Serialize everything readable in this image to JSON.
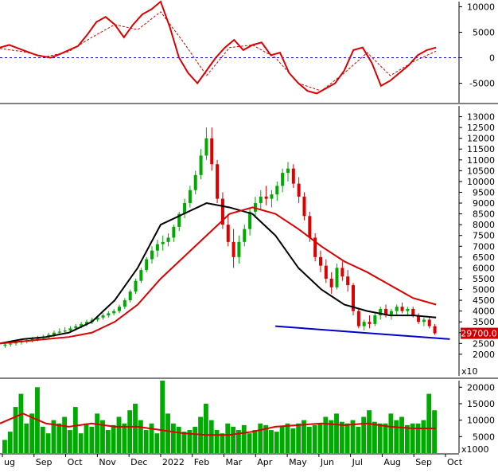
{
  "chart_data": [
    {
      "panel": "oscillator",
      "type": "line",
      "ylim": [
        -8500,
        11000
      ],
      "y_ticks": [
        "10000",
        "5000",
        "0",
        "-5000"
      ],
      "zero_line_color": "#0000cc",
      "series": [
        {
          "name": "",
          "color": "#dd0000",
          "style": "solid",
          "x": [
            0,
            0.02,
            0.05,
            0.08,
            0.11,
            0.13,
            0.15,
            0.17,
            0.19,
            0.21,
            0.23,
            0.25,
            0.27,
            0.29,
            0.31,
            0.33,
            0.35,
            0.37,
            0.39,
            0.41,
            0.43,
            0.45,
            0.47,
            0.49,
            0.51,
            0.53,
            0.55,
            0.57,
            0.59,
            0.61,
            0.63,
            0.65,
            0.67,
            0.69,
            0.71,
            0.73,
            0.75,
            0.77,
            0.79,
            0.81,
            0.83,
            0.85,
            0.87,
            0.89,
            0.91,
            0.93,
            0.95
          ],
          "y": [
            2000,
            2500,
            1500,
            500,
            0,
            700,
            1500,
            2300,
            4500,
            7000,
            8000,
            6500,
            4000,
            6500,
            8500,
            9500,
            11000,
            6000,
            0,
            -3000,
            -5000,
            -2500,
            0,
            2000,
            3500,
            1500,
            2500,
            3000,
            500,
            1000,
            -3000,
            -5000,
            -6500,
            -7000,
            -6000,
            -5000,
            -2500,
            1500,
            2000,
            -1000,
            -5500,
            -4500,
            -3000,
            -1500,
            500,
            1500,
            2000
          ]
        },
        {
          "name": "",
          "color": "#dd0000",
          "style": "dashed",
          "x": [
            0,
            0.05,
            0.1,
            0.15,
            0.2,
            0.25,
            0.3,
            0.35,
            0.4,
            0.45,
            0.5,
            0.55,
            0.6,
            0.65,
            0.7,
            0.75,
            0.8,
            0.85,
            0.9,
            0.95
          ],
          "y": [
            1800,
            1200,
            200,
            1200,
            4000,
            6500,
            5500,
            9000,
            3000,
            -3500,
            2000,
            2500,
            0,
            -5000,
            -6500,
            -3000,
            1000,
            -3500,
            -800,
            1300
          ]
        }
      ]
    },
    {
      "panel": "price",
      "type": "candlestick",
      "ylim": [
        1000,
        13500
      ],
      "y_ticks": [
        "13000",
        "12500",
        "12000",
        "11500",
        "11000",
        "10500",
        "10000",
        "9500",
        "9000",
        "8500",
        "8000",
        "7500",
        "7000",
        "6500",
        "6000",
        "5500",
        "5000",
        "4500",
        "4000",
        "3500",
        "3000",
        "2500",
        "2000"
      ],
      "last_price_label": "29700.0",
      "axis_multiplier": "x10",
      "candles": [
        [
          2400,
          2500,
          2300,
          2450
        ],
        [
          2450,
          2600,
          2350,
          2500
        ],
        [
          2500,
          2650,
          2400,
          2550
        ],
        [
          2550,
          2700,
          2450,
          2600
        ],
        [
          2600,
          2750,
          2500,
          2650
        ],
        [
          2650,
          2800,
          2550,
          2700
        ],
        [
          2700,
          2850,
          2600,
          2750
        ],
        [
          2750,
          2900,
          2650,
          2800
        ],
        [
          2800,
          3000,
          2700,
          2900
        ],
        [
          2900,
          3100,
          2800,
          3000
        ],
        [
          3000,
          3200,
          2900,
          3050
        ],
        [
          3050,
          3250,
          2950,
          3100
        ],
        [
          3100,
          3300,
          3000,
          3200
        ],
        [
          3200,
          3400,
          3100,
          3300
        ],
        [
          3300,
          3500,
          3200,
          3400
        ],
        [
          3400,
          3600,
          3300,
          3500
        ],
        [
          3500,
          3700,
          3400,
          3600
        ],
        [
          3600,
          3800,
          3500,
          3700
        ],
        [
          3700,
          3900,
          3600,
          3800
        ],
        [
          3800,
          4000,
          3700,
          3900
        ],
        [
          3900,
          4100,
          3800,
          4000
        ],
        [
          4000,
          4300,
          3900,
          4200
        ],
        [
          4200,
          4600,
          4100,
          4500
        ],
        [
          4500,
          5000,
          4400,
          4900
        ],
        [
          4900,
          5500,
          4800,
          5400
        ],
        [
          5400,
          6000,
          5300,
          5900
        ],
        [
          5900,
          6500,
          5800,
          6400
        ],
        [
          6400,
          7000,
          6200,
          6800
        ],
        [
          6800,
          7300,
          6500,
          7100
        ],
        [
          7100,
          7500,
          6800,
          7200
        ],
        [
          7200,
          7600,
          7000,
          7400
        ],
        [
          7400,
          8000,
          7200,
          7900
        ],
        [
          7900,
          8600,
          7700,
          8500
        ],
        [
          8500,
          9200,
          8300,
          9000
        ],
        [
          9000,
          9800,
          8800,
          9600
        ],
        [
          9600,
          10500,
          9400,
          10300
        ],
        [
          10300,
          11500,
          10100,
          11200
        ],
        [
          11200,
          12500,
          11000,
          12000
        ],
        [
          12000,
          12500,
          10500,
          10800
        ],
        [
          10800,
          11000,
          9000,
          9200
        ],
        [
          9200,
          9500,
          7800,
          8000
        ],
        [
          8000,
          8500,
          7000,
          7200
        ],
        [
          7200,
          7800,
          6000,
          6500
        ],
        [
          6500,
          7500,
          6200,
          7200
        ],
        [
          7200,
          8000,
          7000,
          7800
        ],
        [
          7800,
          8800,
          7500,
          8600
        ],
        [
          8600,
          9300,
          8300,
          9000
        ],
        [
          9000,
          9600,
          8700,
          9300
        ],
        [
          9300,
          9800,
          8900,
          9200
        ],
        [
          9200,
          9600,
          8800,
          9400
        ],
        [
          9400,
          10000,
          9100,
          9800
        ],
        [
          9800,
          10600,
          9500,
          10400
        ],
        [
          10400,
          10900,
          10000,
          10600
        ],
        [
          10600,
          10800,
          9700,
          9900
        ],
        [
          9900,
          10200,
          9000,
          9300
        ],
        [
          9300,
          9500,
          8200,
          8400
        ],
        [
          8400,
          8600,
          7200,
          7400
        ],
        [
          7400,
          7600,
          6300,
          6500
        ],
        [
          6500,
          6800,
          5800,
          6100
        ],
        [
          6100,
          6400,
          5300,
          5500
        ],
        [
          5500,
          5800,
          4800,
          5100
        ],
        [
          5100,
          6200,
          5000,
          6000
        ],
        [
          6000,
          6300,
          5400,
          5600
        ],
        [
          5600,
          5900,
          4900,
          5200
        ],
        [
          5200,
          5300,
          3800,
          4000
        ],
        [
          4000,
          4100,
          3200,
          3300
        ],
        [
          3300,
          3600,
          3100,
          3500
        ],
        [
          3500,
          3800,
          3200,
          3400
        ],
        [
          3400,
          3900,
          3300,
          3800
        ],
        [
          3800,
          4200,
          3600,
          4100
        ],
        [
          4100,
          4300,
          3700,
          3800
        ],
        [
          3800,
          4100,
          3600,
          4000
        ],
        [
          4000,
          4300,
          3800,
          4200
        ],
        [
          4200,
          4400,
          3900,
          4000
        ],
        [
          4000,
          4200,
          3800,
          4100
        ],
        [
          4100,
          4200,
          3700,
          3800
        ],
        [
          3800,
          3900,
          3400,
          3500
        ],
        [
          3500,
          3700,
          3300,
          3600
        ],
        [
          3600,
          3700,
          3200,
          3300
        ],
        [
          3300,
          3400,
          2900,
          2970
        ]
      ],
      "series": [
        {
          "name": "",
          "color": "#000000",
          "x": [
            0,
            0.05,
            0.1,
            0.15,
            0.2,
            0.25,
            0.3,
            0.35,
            0.4,
            0.45,
            0.5,
            0.55,
            0.6,
            0.65,
            0.7,
            0.75,
            0.8,
            0.85,
            0.9,
            0.95
          ],
          "y": [
            2500,
            2700,
            2800,
            3000,
            3500,
            4500,
            6000,
            8000,
            8500,
            9000,
            8800,
            8500,
            7500,
            6000,
            5000,
            4300,
            4000,
            3800,
            3800,
            3700
          ]
        },
        {
          "name": "",
          "color": "#dd0000",
          "x": [
            0,
            0.05,
            0.1,
            0.15,
            0.2,
            0.25,
            0.3,
            0.35,
            0.4,
            0.45,
            0.5,
            0.55,
            0.6,
            0.65,
            0.7,
            0.75,
            0.8,
            0.85,
            0.9,
            0.95
          ],
          "y": [
            2500,
            2600,
            2700,
            2800,
            3000,
            3500,
            4300,
            5500,
            6500,
            7500,
            8500,
            8800,
            8500,
            7800,
            7000,
            6300,
            5800,
            5200,
            4600,
            4300
          ]
        },
        {
          "name": "",
          "color": "#0000cc",
          "x": [
            0.6,
            0.98
          ],
          "y": [
            3300,
            2700
          ]
        }
      ]
    },
    {
      "panel": "volume",
      "type": "bar",
      "ylim": [
        0,
        22000
      ],
      "y_ticks": [
        "20000",
        "15000",
        "10000",
        "5000"
      ],
      "axis_multiplier": "x1000",
      "values": [
        4000,
        6500,
        14000,
        18000,
        9000,
        12000,
        20000,
        8000,
        6000,
        10000,
        9000,
        11000,
        7000,
        14000,
        6000,
        9000,
        8000,
        12000,
        10000,
        7000,
        8500,
        11000,
        9000,
        13000,
        15000,
        10000,
        7000,
        9000,
        6000,
        22000,
        12000,
        9000,
        8000,
        6500,
        7000,
        8000,
        11000,
        15000,
        10000,
        7000,
        6000,
        9000,
        8000,
        7000,
        8500,
        6000,
        7000,
        9000,
        8500,
        7000,
        6500,
        8000,
        9000,
        7500,
        9000,
        10000,
        8000,
        8500,
        9000,
        11000,
        10000,
        12000,
        9500,
        9000,
        10000,
        8000,
        11000,
        13000,
        9500,
        9000,
        9000,
        12000,
        10000,
        11000,
        8500,
        9000,
        9000,
        10000,
        18000,
        13000
      ],
      "series": [
        {
          "name": "",
          "color": "#dd0000",
          "type": "line",
          "x": [
            0,
            0.05,
            0.1,
            0.15,
            0.2,
            0.25,
            0.3,
            0.35,
            0.4,
            0.45,
            0.5,
            0.55,
            0.6,
            0.65,
            0.7,
            0.75,
            0.8,
            0.85,
            0.9,
            0.95
          ],
          "y": [
            9000,
            12000,
            9000,
            8000,
            9000,
            8000,
            8000,
            7000,
            6000,
            5500,
            5500,
            6500,
            8000,
            8500,
            9000,
            8500,
            9000,
            8000,
            7500,
            7500
          ]
        }
      ]
    }
  ],
  "x_axis": {
    "labels": [
      "ug",
      "Sep",
      "Oct",
      "Nov",
      "Dec",
      "2022",
      "Feb",
      "Mar",
      "Apr",
      "May",
      "Jun",
      "Jul",
      "Aug",
      "Sep",
      "Oct"
    ]
  },
  "colors": {
    "up": "#00aa00",
    "down": "#dd0000",
    "label_box": "#cc0000"
  }
}
